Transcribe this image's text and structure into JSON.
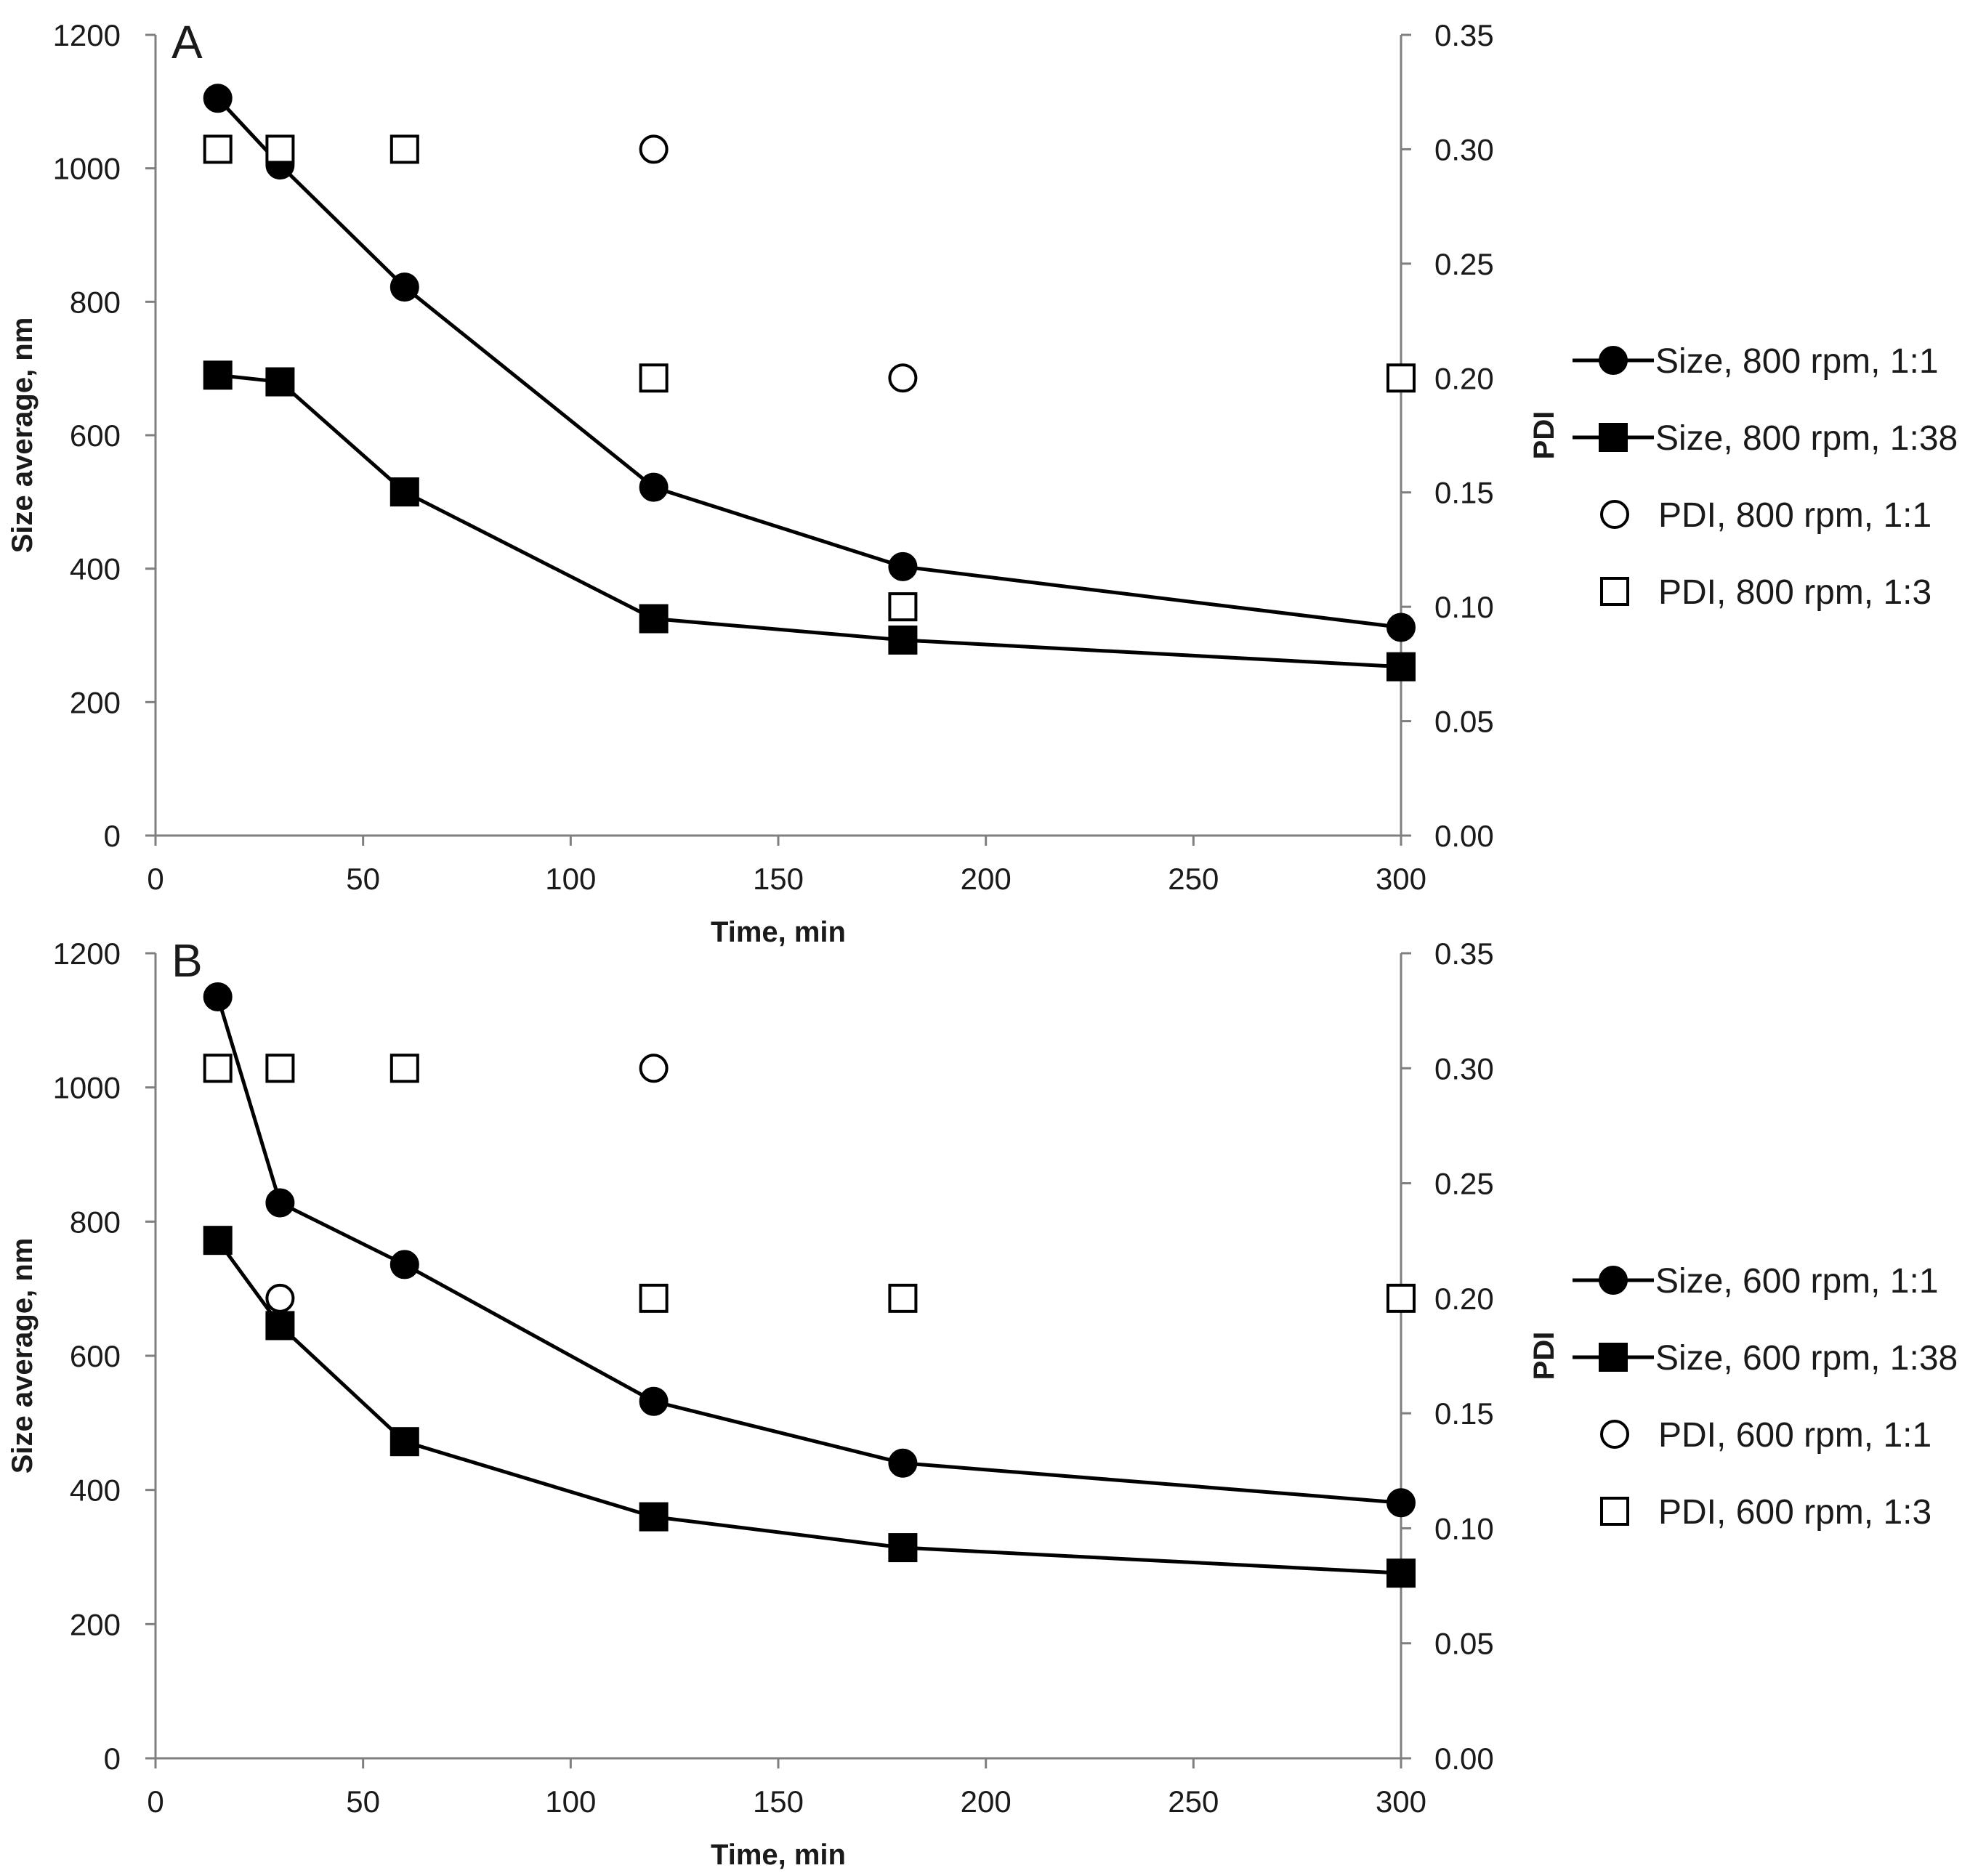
{
  "chart_data": [
    {
      "type": "scatter",
      "panel_label": "A",
      "xlabel": "Time, min",
      "ylabel": "Size average, nm",
      "y2label": "PDI",
      "xlim": [
        0,
        300
      ],
      "ylim": [
        0,
        1200
      ],
      "y2lim": [
        0,
        0.35
      ],
      "xticks": [
        "0",
        "50",
        "100",
        "150",
        "200",
        "250",
        "300"
      ],
      "yticks": [
        "0",
        "200",
        "400",
        "600",
        "800",
        "1000",
        "1200"
      ],
      "y2ticks": [
        "0.00",
        "0.05",
        "0.10",
        "0.15",
        "0.20",
        "0.25",
        "0.30",
        "0.35"
      ],
      "grid": false,
      "legend_position": "right",
      "series": [
        {
          "name": "Size, 800 rpm, 1:1",
          "axis": "left",
          "marker": "filled-circle",
          "line": true,
          "x": [
            15,
            30,
            60,
            120,
            180,
            300
          ],
          "y": [
            1105,
            1005,
            822,
            522,
            403,
            312
          ]
        },
        {
          "name": "Size, 800 rpm, 1:38",
          "axis": "left",
          "marker": "filled-square",
          "line": true,
          "x": [
            15,
            30,
            60,
            120,
            180,
            300
          ],
          "y": [
            690,
            680,
            515,
            325,
            293,
            253
          ]
        },
        {
          "name": "PDI, 800 rpm, 1:1",
          "axis": "right",
          "marker": "open-circle",
          "line": false,
          "x": [
            120,
            180
          ],
          "y": [
            0.3,
            0.2
          ]
        },
        {
          "name": "PDI, 800 rpm, 1:3",
          "axis": "right",
          "marker": "open-square",
          "line": false,
          "x": [
            15,
            30,
            60,
            120,
            180,
            300
          ],
          "y": [
            0.3,
            0.3,
            0.3,
            0.2,
            0.1,
            0.2
          ]
        }
      ],
      "legend_labels": [
        "Size, 800 rpm, 1:1",
        "Size, 800 rpm, 1:38",
        "PDI, 800 rpm, 1:1",
        "PDI, 800 rpm, 1:3"
      ]
    },
    {
      "type": "scatter",
      "panel_label": "B",
      "xlabel": "Time, min",
      "ylabel": "Size average, nm",
      "y2label": "PDI",
      "xlim": [
        0,
        300
      ],
      "ylim": [
        0,
        1200
      ],
      "y2lim": [
        0,
        0.35
      ],
      "xticks": [
        "0",
        "50",
        "100",
        "150",
        "200",
        "250",
        "300"
      ],
      "yticks": [
        "0",
        "200",
        "400",
        "600",
        "800",
        "1000",
        "1200"
      ],
      "y2ticks": [
        "0.00",
        "0.05",
        "0.10",
        "0.15",
        "0.20",
        "0.25",
        "0.30",
        "0.35"
      ],
      "grid": false,
      "legend_position": "right",
      "series": [
        {
          "name": "Size, 600 rpm, 1:1",
          "axis": "left",
          "marker": "filled-circle",
          "line": true,
          "x": [
            15,
            30,
            60,
            120,
            180,
            300
          ],
          "y": [
            1135,
            828,
            736,
            532,
            440,
            381
          ]
        },
        {
          "name": "Size, 600 rpm, 1:38",
          "axis": "left",
          "marker": "filled-square",
          "line": true,
          "x": [
            15,
            30,
            60,
            120,
            180,
            300
          ],
          "y": [
            772,
            645,
            472,
            360,
            314,
            276
          ]
        },
        {
          "name": "PDI, 600 rpm, 1:1",
          "axis": "right",
          "marker": "open-circle",
          "line": false,
          "x": [
            30,
            120
          ],
          "y": [
            0.2,
            0.3
          ]
        },
        {
          "name": "PDI, 600 rpm, 1:3",
          "axis": "right",
          "marker": "open-square",
          "line": false,
          "x": [
            15,
            30,
            60,
            120,
            180,
            300
          ],
          "y": [
            0.3,
            0.3,
            0.3,
            0.2,
            0.2,
            0.2
          ]
        }
      ],
      "legend_labels": [
        "Size, 600 rpm, 1:1",
        "Size, 600 rpm, 1:38",
        "PDI, 600 rpm, 1:1",
        "PDI, 600 rpm, 1:3"
      ]
    }
  ]
}
